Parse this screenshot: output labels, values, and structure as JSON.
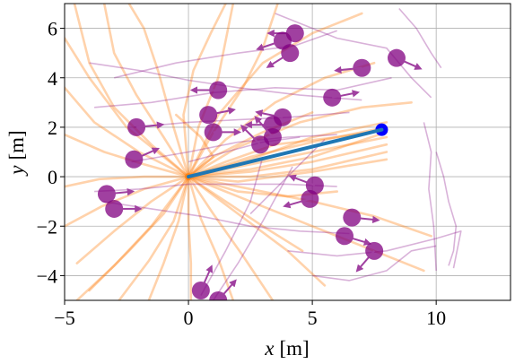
{
  "chart_data": {
    "type": "scatter",
    "xlabel_var": "x",
    "xlabel_unit": "[m]",
    "ylabel_var": "y",
    "ylabel_unit": "[m]",
    "xlim": [
      -5,
      13
    ],
    "ylim": [
      -5,
      7
    ],
    "xticks": [
      -5,
      0,
      5,
      10
    ],
    "yticks": [
      -4,
      -2,
      0,
      2,
      4,
      6
    ],
    "xtick_labels": [
      "−5",
      "0",
      "5",
      "10"
    ],
    "ytick_labels": [
      "−4",
      "−2",
      "0",
      "2",
      "4",
      "6"
    ],
    "grid": true,
    "colors": {
      "candidate_trajectories": "#ff7f0e",
      "pedestrian": "#800080",
      "selected_path": "#1f77b4",
      "goal": "#0000ff",
      "axes": "#000000",
      "grid": "#b0b0b0"
    },
    "robot": {
      "x": 0,
      "y": 0
    },
    "goal": {
      "x": 7.8,
      "y": 1.9
    },
    "selected_path": {
      "x": [
        0,
        7.8
      ],
      "y": [
        0,
        1.9
      ]
    },
    "pedestrians": [
      {
        "x": 4.3,
        "y": 5.8,
        "vx": -0.35,
        "vy": 0.0
      },
      {
        "x": 3.8,
        "y": 5.5,
        "vx": -0.9,
        "vy": -0.3
      },
      {
        "x": 4.1,
        "y": 5.0,
        "vx": -0.8,
        "vy": -0.5
      },
      {
        "x": 8.4,
        "y": 4.8,
        "vx": 0.9,
        "vy": -0.4
      },
      {
        "x": 7.0,
        "y": 4.4,
        "vx": -1.0,
        "vy": -0.1
      },
      {
        "x": 1.2,
        "y": 3.5,
        "vx": -1.0,
        "vy": 0.0
      },
      {
        "x": 5.8,
        "y": 3.2,
        "vx": 1.0,
        "vy": 0.2
      },
      {
        "x": 3.8,
        "y": 2.4,
        "vx": -1.0,
        "vy": 0.2
      },
      {
        "x": 0.8,
        "y": 2.5,
        "vx": 1.0,
        "vy": 0.2
      },
      {
        "x": 3.4,
        "y": 2.1,
        "vx": -1.0,
        "vy": 0.0
      },
      {
        "x": -2.1,
        "y": 2.0,
        "vx": 1.0,
        "vy": 0.1
      },
      {
        "x": 1.0,
        "y": 1.8,
        "vx": 1.0,
        "vy": 0.0
      },
      {
        "x": 3.4,
        "y": 1.6,
        "vx": -0.6,
        "vy": 0.7
      },
      {
        "x": 2.9,
        "y": 1.3,
        "vx": -0.6,
        "vy": 0.6
      },
      {
        "x": -2.2,
        "y": 0.7,
        "vx": 0.9,
        "vy": 0.4
      },
      {
        "x": 5.1,
        "y": -0.35,
        "vx": -0.8,
        "vy": 0.3
      },
      {
        "x": 4.9,
        "y": -0.9,
        "vx": -0.7,
        "vy": -0.2
      },
      {
        "x": -3.3,
        "y": -0.7,
        "vx": 1.0,
        "vy": 0.1
      },
      {
        "x": -3.0,
        "y": -1.3,
        "vx": 1.0,
        "vy": 0.0
      },
      {
        "x": 6.6,
        "y": -1.65,
        "vx": 1.0,
        "vy": -0.1
      },
      {
        "x": 6.3,
        "y": -2.4,
        "vx": 1.0,
        "vy": -0.3
      },
      {
        "x": 7.5,
        "y": -3.0,
        "vx": -0.6,
        "vy": -0.7
      },
      {
        "x": 0.5,
        "y": -4.6,
        "vx": 0.4,
        "vy": 0.9
      },
      {
        "x": 1.2,
        "y": -5.0,
        "vx": 0.7,
        "vy": 0.8
      }
    ],
    "pedestrian_tracks": [
      {
        "x": [
          -3.8,
          -1.5,
          1.0,
          3.5,
          6.0,
          8.2
        ],
        "y": [
          2.8,
          3.0,
          3.4,
          3.6,
          3.5,
          4.0
        ]
      },
      {
        "x": [
          -3.0,
          -0.5,
          2.0,
          4.3,
          6.0
        ],
        "y": [
          4.0,
          4.6,
          5.0,
          5.3,
          5.9
        ]
      },
      {
        "x": [
          3.5,
          6.0,
          8.0,
          9.0,
          9.8
        ],
        "y": [
          6.6,
          5.6,
          5.2,
          4.0,
          3.2
        ]
      },
      {
        "x": [
          8.5,
          9.2,
          9.8,
          10.2
        ],
        "y": [
          6.8,
          6.0,
          5.0,
          4.4
        ]
      },
      {
        "x": [
          -4.0,
          -2.0,
          0.0,
          2.0,
          4.5,
          7.0
        ],
        "y": [
          4.6,
          4.3,
          3.9,
          3.6,
          3.3,
          3.1
        ]
      },
      {
        "x": [
          9.5,
          9.8,
          9.7,
          9.9,
          10.0
        ],
        "y": [
          2.2,
          1.0,
          -0.5,
          -2.0,
          -3.8
        ]
      },
      {
        "x": [
          10.0,
          10.3,
          10.5,
          10.8,
          10.7,
          10.5
        ],
        "y": [
          1.0,
          0.0,
          -1.0,
          -2.0,
          -3.0,
          -3.6
        ]
      },
      {
        "x": [
          4.0,
          6.0,
          8.0,
          10.0,
          11.0,
          10.7
        ],
        "y": [
          -3.0,
          -3.2,
          -3.0,
          -2.5,
          -2.2,
          -3.7
        ]
      },
      {
        "x": [
          5.0,
          6.5,
          8.0,
          9.0,
          10.0
        ],
        "y": [
          -4.0,
          -4.2,
          -3.8,
          -3.0,
          -2.8
        ]
      },
      {
        "x": [
          -3.5,
          -1.5,
          0.5,
          2.5,
          4.5,
          6.5
        ],
        "y": [
          -1.0,
          -1.3,
          -1.6,
          -2.0,
          -2.2,
          -2.3
        ]
      },
      {
        "x": [
          -3.8,
          -2.0,
          0.0,
          2.0,
          4.0,
          6.0
        ],
        "y": [
          -0.6,
          -0.5,
          -0.3,
          -0.3,
          -0.3,
          -0.4
        ]
      },
      {
        "x": [
          -2.3,
          0.0,
          2.0,
          4.0,
          6.0
        ],
        "y": [
          0.6,
          1.0,
          1.4,
          1.6,
          1.7
        ]
      },
      {
        "x": [
          -2.2,
          0.0,
          2.0,
          4.0,
          6.5
        ],
        "y": [
          2.0,
          2.2,
          2.3,
          2.4,
          2.6
        ]
      },
      {
        "x": [
          0.5,
          1.5,
          2.5,
          3.0
        ],
        "y": [
          -4.8,
          -3.0,
          -1.0,
          0.8
        ]
      },
      {
        "x": [
          1.0,
          2.0,
          3.0,
          4.2
        ],
        "y": [
          -5.0,
          -3.5,
          -1.8,
          0.4
        ]
      },
      {
        "x": [
          2.5,
          3.5,
          4.5,
          5.5
        ],
        "y": [
          -1.5,
          -0.5,
          0.5,
          1.5
        ]
      },
      {
        "x": [
          0.0,
          1.5,
          3.0,
          4.5
        ],
        "y": [
          0.6,
          1.0,
          1.4,
          1.6
        ]
      }
    ],
    "candidate_trajectories": [
      {
        "x": [
          0,
          -0.6,
          -1.2,
          -1.8,
          -2.4
        ],
        "y": [
          0,
          2.0,
          4.2,
          6.0,
          7.0
        ]
      },
      {
        "x": [
          0,
          -1.0,
          -2.1,
          -3.0,
          -3.4
        ],
        "y": [
          0,
          1.6,
          3.3,
          5.0,
          7.0
        ]
      },
      {
        "x": [
          0,
          -1.5,
          -3.0,
          -4.0,
          -4.6
        ],
        "y": [
          0,
          1.3,
          2.8,
          4.6,
          7.0
        ]
      },
      {
        "x": [
          0,
          -2.0,
          -3.8,
          -5.0
        ],
        "y": [
          0,
          1.0,
          2.2,
          3.6
        ]
      },
      {
        "x": [
          0,
          -0.2,
          0.2,
          0.9,
          1.5
        ],
        "y": [
          0,
          2.5,
          4.3,
          5.8,
          7.0
        ]
      },
      {
        "x": [
          0,
          0.4,
          1.2,
          1.8
        ],
        "y": [
          0,
          2.0,
          4.0,
          7.0
        ]
      },
      {
        "x": [
          0,
          1.5,
          3.5,
          5.5,
          7.5
        ],
        "y": [
          0,
          1.5,
          3.0,
          4.0,
          4.6
        ]
      },
      {
        "x": [
          0,
          1.0,
          2.2,
          3.0,
          3.6
        ],
        "y": [
          0,
          1.8,
          3.6,
          5.2,
          7.0
        ]
      },
      {
        "x": [
          0,
          -1.8,
          -3.4,
          -5.0
        ],
        "y": [
          0,
          0.5,
          1.0,
          1.7
        ]
      },
      {
        "x": [
          0,
          -1.8,
          -3.6,
          -5.0
        ],
        "y": [
          0,
          0.0,
          -0.1,
          -0.4
        ]
      },
      {
        "x": [
          0,
          -1.8,
          -3.5,
          -5.0
        ],
        "y": [
          0,
          -0.5,
          -1.2,
          -2.0
        ]
      },
      {
        "x": [
          0,
          -1.5,
          -3.0,
          -4.5
        ],
        "y": [
          0,
          -1.0,
          -2.2,
          -3.5
        ]
      },
      {
        "x": [
          0,
          -1.0,
          -2.4,
          -4.0
        ],
        "y": [
          0,
          -1.5,
          -3.0,
          -4.6
        ]
      },
      {
        "x": [
          0,
          -0.6,
          -1.6,
          -2.8
        ],
        "y": [
          0,
          -1.8,
          -3.4,
          -5.0
        ]
      },
      {
        "x": [
          0,
          -0.4,
          -1.0,
          -1.6
        ],
        "y": [
          0,
          -1.8,
          -3.5,
          -5.0
        ]
      },
      {
        "x": [
          0,
          0.0,
          0.1,
          0.1
        ],
        "y": [
          0,
          -1.8,
          -3.5,
          -5.0
        ]
      },
      {
        "x": [
          0,
          0.5,
          1.2,
          1.8
        ],
        "y": [
          0,
          -1.7,
          -3.3,
          -5.0
        ]
      },
      {
        "x": [
          0,
          1.0,
          2.2,
          3.4
        ],
        "y": [
          0,
          -1.5,
          -3.2,
          -5.0
        ]
      },
      {
        "x": [
          0,
          2.0,
          4.0,
          5.5
        ],
        "y": [
          0,
          -1.5,
          -3.0,
          -4.4
        ]
      },
      {
        "x": [
          0,
          2.5,
          5.0,
          7.5,
          9.5
        ],
        "y": [
          0,
          -1.0,
          -2.0,
          -3.0,
          -3.8
        ]
      },
      {
        "x": [
          0,
          2.5,
          5.0,
          7.5,
          9.8
        ],
        "y": [
          0,
          -0.5,
          -1.0,
          -1.6,
          -2.4
        ]
      },
      {
        "x": [
          0,
          2.0,
          4.5,
          7.0,
          9.0
        ],
        "y": [
          0,
          1.2,
          2.2,
          2.8,
          3.0
        ]
      },
      {
        "x": [
          0,
          1.2,
          3.0,
          5.0,
          7.0
        ],
        "y": [
          0,
          2.5,
          4.6,
          5.8,
          6.6
        ]
      },
      {
        "x": [
          0,
          2.5,
          5.0,
          8.0
        ],
        "y": [
          0,
          0.8,
          1.4,
          2.0
        ]
      },
      {
        "x": [
          0,
          2.5,
          5.0,
          8.0
        ],
        "y": [
          0,
          0.5,
          1.0,
          1.6
        ]
      },
      {
        "x": [
          0,
          2.5,
          5.0,
          8.0
        ],
        "y": [
          0,
          0.2,
          0.6,
          1.3
        ]
      },
      {
        "x": [
          0,
          2.5,
          5.0,
          8.0
        ],
        "y": [
          0,
          0.0,
          0.3,
          1.0
        ]
      },
      {
        "x": [
          0,
          2.5,
          5.0,
          8.0
        ],
        "y": [
          0,
          0.7,
          1.6,
          2.2
        ]
      },
      {
        "x": [
          0,
          2.5,
          5.0,
          8.0
        ],
        "y": [
          0,
          0.3,
          0.8,
          1.8
        ]
      },
      {
        "x": [
          0,
          2.0,
          5.0,
          8.0
        ],
        "y": [
          0,
          -0.2,
          0.2,
          0.7
        ]
      },
      {
        "x": [
          0,
          1.5,
          3.5,
          6.0,
          8.0
        ],
        "y": [
          0,
          0.6,
          1.3,
          1.6,
          1.9
        ]
      },
      {
        "x": [
          0,
          1.0,
          3.0,
          5.0
        ],
        "y": [
          0,
          0.8,
          1.8,
          2.6
        ]
      },
      {
        "x": [
          0,
          2.0,
          4.0,
          6.0
        ],
        "y": [
          0,
          -0.6,
          -0.8,
          -0.6
        ]
      },
      {
        "x": [
          0,
          -1.5,
          -3.0,
          -4.5
        ],
        "y": [
          0,
          -2.0,
          -3.6,
          -5.0
        ]
      },
      {
        "x": [
          0,
          1.5,
          3.0,
          4.6
        ],
        "y": [
          0,
          -1.0,
          -2.0,
          -3.0
        ]
      },
      {
        "x": [
          0,
          1.0,
          0.5,
          -0.5
        ],
        "y": [
          0,
          0.8,
          1.6,
          2.5
        ]
      },
      {
        "x": [
          0,
          -2.5,
          -4.0,
          -5.0
        ],
        "y": [
          0,
          2.0,
          4.0,
          5.6
        ]
      }
    ]
  }
}
